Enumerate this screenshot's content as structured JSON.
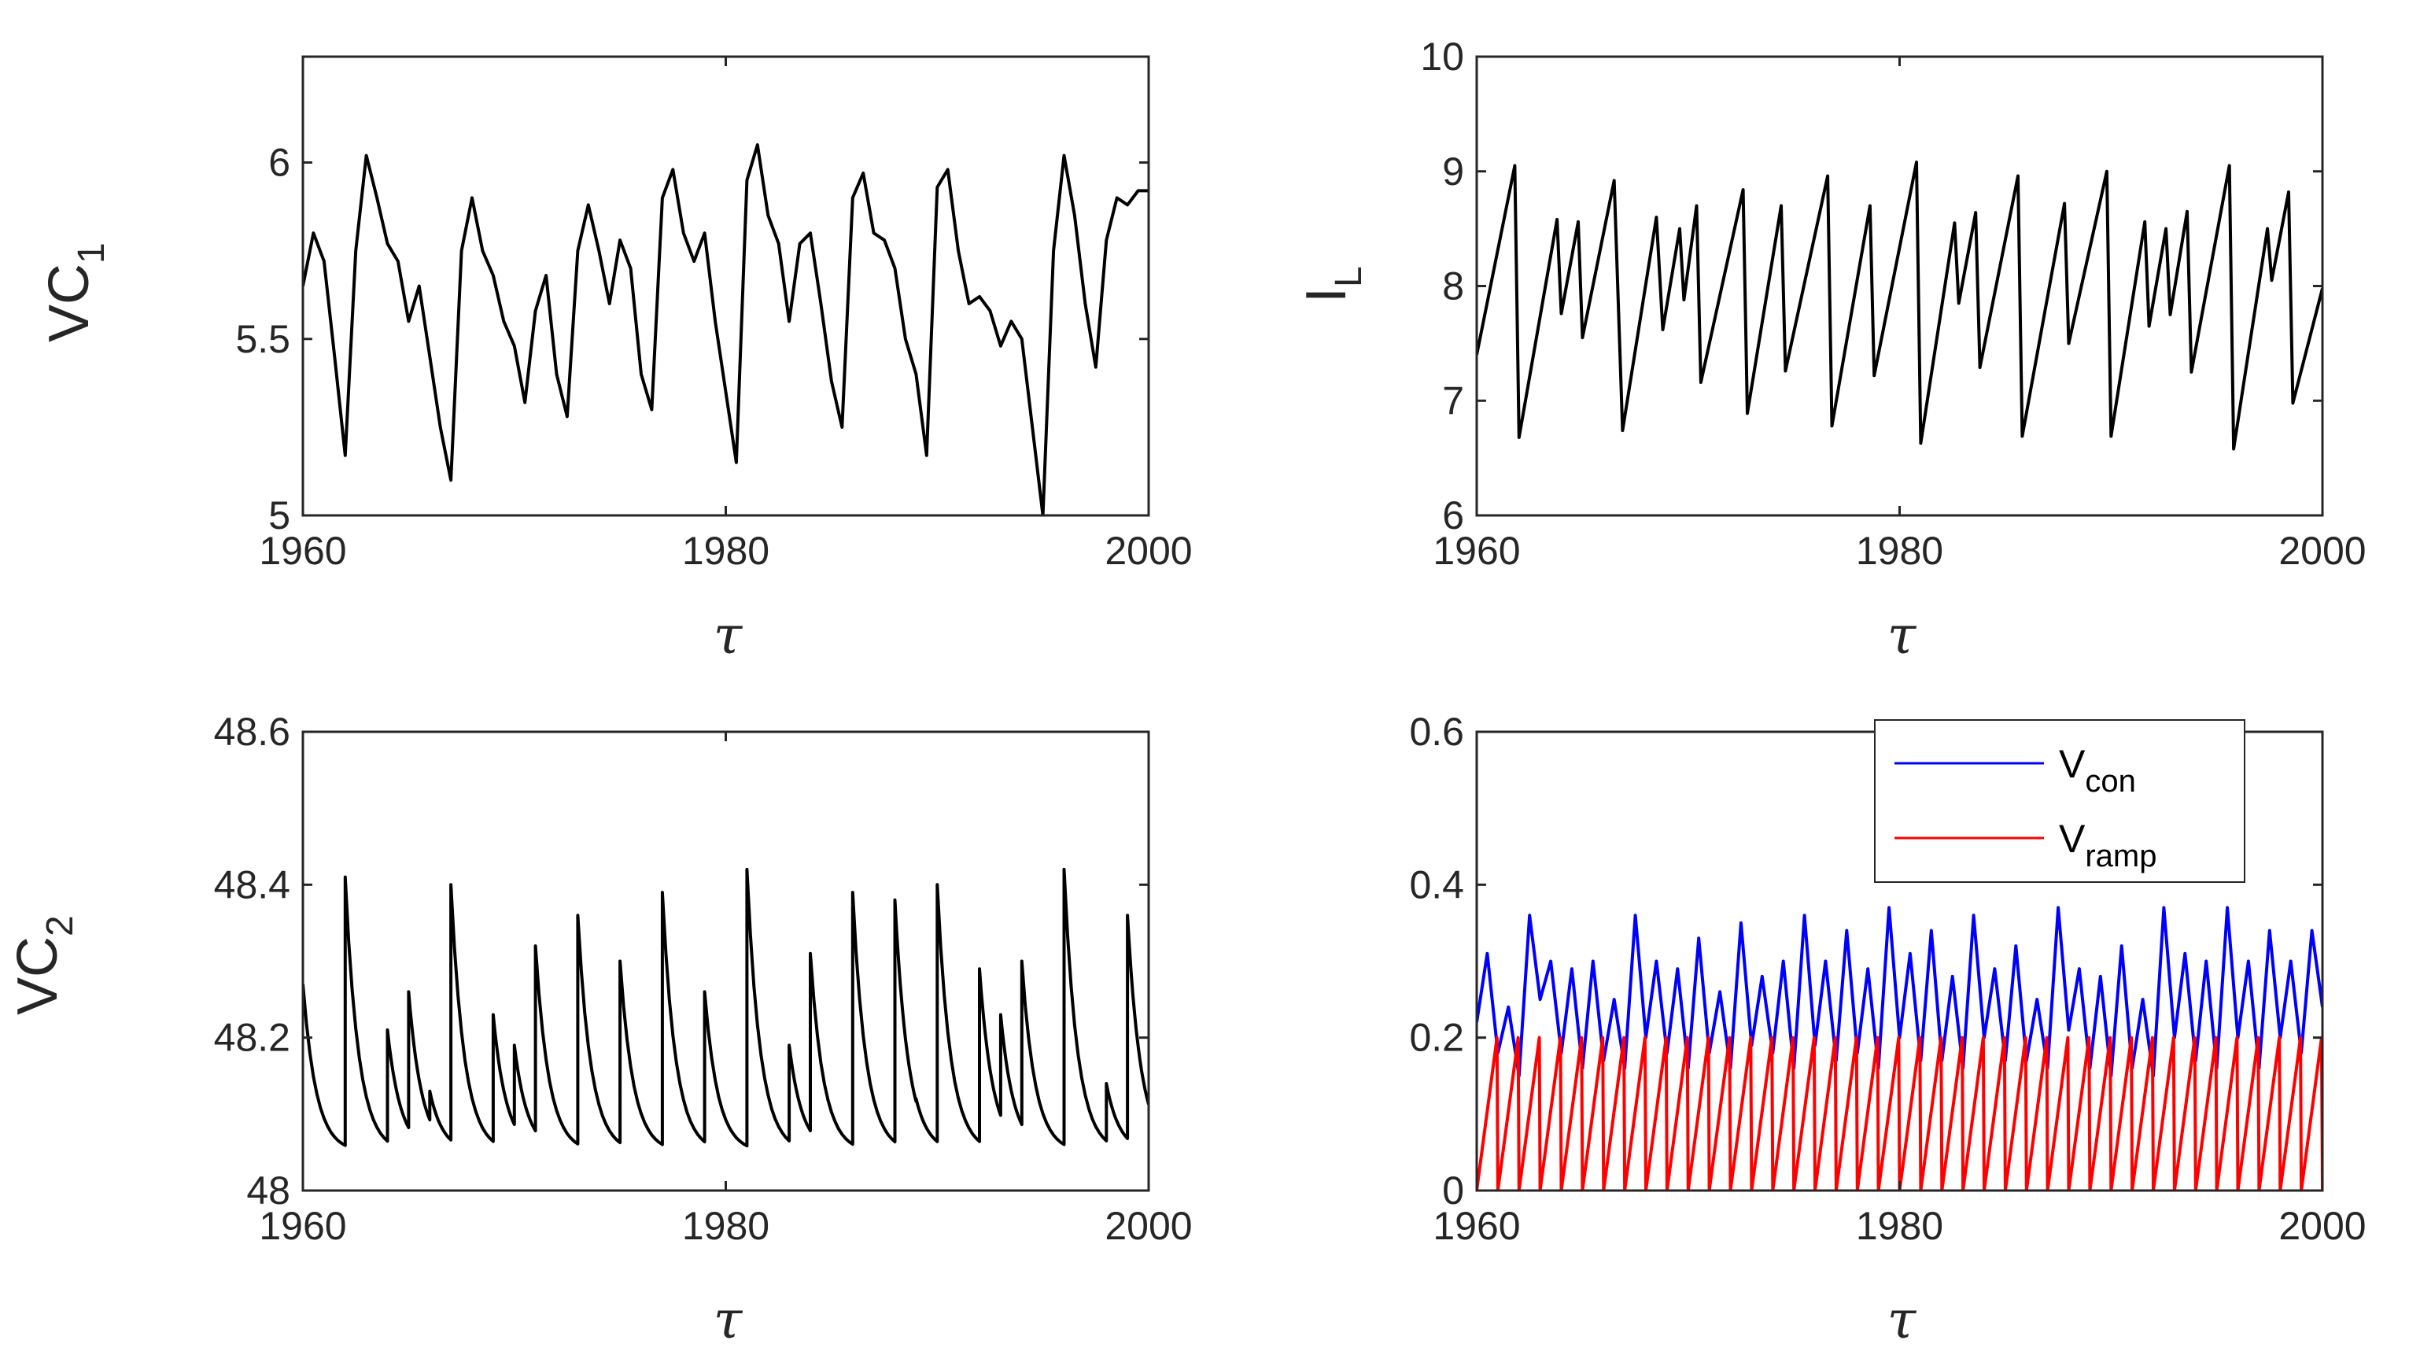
{
  "chart_data": [
    {
      "type": "line",
      "ylabel_main": "VC",
      "ylabel_sub": "1",
      "xlabel": "τ",
      "xlim": [
        1960,
        2000
      ],
      "ylim": [
        5,
        6.3
      ],
      "xticks": [
        1960,
        1980,
        2000
      ],
      "yticks": [
        5,
        5.5,
        6
      ],
      "ytick_labels": [
        "5",
        "5.5",
        "6"
      ],
      "xtick_labels": [
        "1960",
        "1980",
        "2000"
      ],
      "color": "#000000",
      "x": [
        1960,
        1960.5,
        1961,
        1961.5,
        1962,
        1962.5,
        1963,
        1963.5,
        1964,
        1964.5,
        1965,
        1965.5,
        1966,
        1966.5,
        1967,
        1967.5,
        1968,
        1968.5,
        1969,
        1969.5,
        1970,
        1970.5,
        1971,
        1971.5,
        1972,
        1972.5,
        1973,
        1973.5,
        1974,
        1974.5,
        1975,
        1975.5,
        1976,
        1976.5,
        1977,
        1977.5,
        1978,
        1978.5,
        1979,
        1979.5,
        1980,
        1980.5,
        1981,
        1981.5,
        1982,
        1982.5,
        1983,
        1983.5,
        1984,
        1984.5,
        1985,
        1985.5,
        1986,
        1986.5,
        1987,
        1987.5,
        1988,
        1988.5,
        1989,
        1989.5,
        1990,
        1990.5,
        1991,
        1991.5,
        1992,
        1992.5,
        1993,
        1993.5,
        1994,
        1994.5,
        1995,
        1995.5,
        1996,
        1996.5,
        1997,
        1997.5,
        1998,
        1998.5,
        1999,
        1999.5,
        2000
      ],
      "y": [
        5.65,
        5.8,
        5.72,
        5.45,
        5.17,
        5.75,
        6.02,
        5.9,
        5.77,
        5.72,
        5.55,
        5.65,
        5.45,
        5.25,
        5.1,
        5.75,
        5.9,
        5.75,
        5.68,
        5.55,
        5.48,
        5.32,
        5.58,
        5.68,
        5.4,
        5.28,
        5.75,
        5.88,
        5.75,
        5.6,
        5.78,
        5.7,
        5.4,
        5.3,
        5.9,
        5.98,
        5.8,
        5.72,
        5.8,
        5.55,
        5.35,
        5.15,
        5.95,
        6.05,
        5.85,
        5.77,
        5.55,
        5.77,
        5.8,
        5.6,
        5.38,
        5.25,
        5.9,
        5.97,
        5.8,
        5.78,
        5.7,
        5.5,
        5.4,
        5.17,
        5.93,
        5.98,
        5.75,
        5.6,
        5.62,
        5.58,
        5.48,
        5.55,
        5.5,
        5.25,
        5.0,
        5.75,
        6.02,
        5.85,
        5.6,
        5.42,
        5.78,
        5.9,
        5.88,
        5.92,
        5.92
      ]
    },
    {
      "type": "line",
      "ylabel_main": "I",
      "ylabel_sub": "L",
      "xlabel": "τ",
      "xlim": [
        1960,
        2000
      ],
      "ylim": [
        6,
        10
      ],
      "xticks": [
        1960,
        1980,
        2000
      ],
      "yticks": [
        6,
        7,
        8,
        9,
        10
      ],
      "ytick_labels": [
        "6",
        "7",
        "8",
        "9",
        "10"
      ],
      "xtick_labels": [
        "1960",
        "1980",
        "2000"
      ],
      "color": "#000000",
      "x": [
        1960,
        1961.8,
        1962,
        1963.8,
        1964,
        1964.8,
        1965,
        1966.5,
        1966.9,
        1968.5,
        1968.8,
        1969.6,
        1969.8,
        1970.4,
        1970.6,
        1972.6,
        1972.8,
        1974.4,
        1974.6,
        1976.6,
        1976.8,
        1978.6,
        1978.8,
        1980.8,
        1981,
        1982.6,
        1982.8,
        1983.6,
        1983.8,
        1985.6,
        1985.8,
        1987.8,
        1988,
        1989.8,
        1990,
        1991.6,
        1991.8,
        1992.6,
        1992.8,
        1993.6,
        1993.8,
        1995.6,
        1995.8,
        1997.4,
        1997.6,
        1998.4,
        1998.6,
        2000
      ],
      "y": [
        7.4,
        9.05,
        6.68,
        8.58,
        7.76,
        8.56,
        7.55,
        8.92,
        6.74,
        8.6,
        7.62,
        8.5,
        7.88,
        8.7,
        7.16,
        8.84,
        6.89,
        8.7,
        7.26,
        8.96,
        6.78,
        8.7,
        7.22,
        9.08,
        6.63,
        8.55,
        7.85,
        8.64,
        7.29,
        8.96,
        6.69,
        8.72,
        7.5,
        9.0,
        6.69,
        8.56,
        7.65,
        8.5,
        7.75,
        8.65,
        7.25,
        9.05,
        6.58,
        8.5,
        8.05,
        8.82,
        6.98,
        7.98
      ]
    },
    {
      "type": "line",
      "ylabel_main": "VC",
      "ylabel_sub": "2",
      "xlabel": "τ",
      "xlim": [
        1960,
        2000
      ],
      "ylim": [
        48,
        48.6
      ],
      "xticks": [
        1960,
        1980,
        2000
      ],
      "yticks": [
        48,
        48.2,
        48.4,
        48.6
      ],
      "ytick_labels": [
        "48",
        "48.2",
        "48.4",
        "48.6"
      ],
      "xtick_labels": [
        "1960",
        "1980",
        "2000"
      ],
      "color": "#000000",
      "events": [
        {
          "x": 1962,
          "y": 48.41
        },
        {
          "x": 1964,
          "y": 48.21
        },
        {
          "x": 1965,
          "y": 48.26
        },
        {
          "x": 1966,
          "y": 48.13
        },
        {
          "x": 1967,
          "y": 48.4
        },
        {
          "x": 1969,
          "y": 48.23
        },
        {
          "x": 1970,
          "y": 48.19
        },
        {
          "x": 1971,
          "y": 48.32
        },
        {
          "x": 1973,
          "y": 48.36
        },
        {
          "x": 1975,
          "y": 48.3
        },
        {
          "x": 1977,
          "y": 48.39
        },
        {
          "x": 1979,
          "y": 48.26
        },
        {
          "x": 1981,
          "y": 48.42
        },
        {
          "x": 1983,
          "y": 48.19
        },
        {
          "x": 1984,
          "y": 48.31
        },
        {
          "x": 1986,
          "y": 48.39
        },
        {
          "x": 1988,
          "y": 48.38
        },
        {
          "x": 1989,
          "y": 48.12
        },
        {
          "x": 1990,
          "y": 48.4
        },
        {
          "x": 1992,
          "y": 48.29
        },
        {
          "x": 1993,
          "y": 48.23
        },
        {
          "x": 1994,
          "y": 48.3
        },
        {
          "x": 1996,
          "y": 48.42
        },
        {
          "x": 1998,
          "y": 48.14
        },
        {
          "x": 1999,
          "y": 48.36
        }
      ],
      "y_start": 48.27,
      "y_floor": 48.05
    },
    {
      "type": "line",
      "xlabel": "τ",
      "xlim": [
        1960,
        2000
      ],
      "ylim": [
        0,
        0.6
      ],
      "xticks": [
        1960,
        1980,
        2000
      ],
      "yticks": [
        0,
        0.2,
        0.4,
        0.6
      ],
      "ytick_labels": [
        "0",
        "0.2",
        "0.4",
        "0.6"
      ],
      "xtick_labels": [
        "1960",
        "1980",
        "2000"
      ],
      "legend_position": "top-right",
      "series": [
        {
          "name_main": "V",
          "name_sub": "con",
          "color": "#0000ff",
          "x": [
            1960,
            1960.5,
            1961,
            1961.5,
            1962,
            1962.5,
            1963,
            1963.5,
            1964,
            1964.5,
            1965,
            1965.5,
            1966,
            1966.5,
            1967,
            1967.5,
            1968,
            1968.5,
            1969,
            1969.5,
            1970,
            1970.5,
            1971,
            1971.5,
            1972,
            1972.5,
            1973,
            1973.5,
            1974,
            1974.5,
            1975,
            1975.5,
            1976,
            1976.5,
            1977,
            1977.5,
            1978,
            1978.5,
            1979,
            1979.5,
            1980,
            1980.5,
            1981,
            1981.5,
            1982,
            1982.5,
            1983,
            1983.5,
            1984,
            1984.5,
            1985,
            1985.5,
            1986,
            1986.5,
            1987,
            1987.5,
            1988,
            1988.5,
            1989,
            1989.5,
            1990,
            1990.5,
            1991,
            1991.5,
            1992,
            1992.5,
            1993,
            1993.5,
            1994,
            1994.5,
            1995,
            1995.5,
            1996,
            1996.5,
            1997,
            1997.5,
            1998,
            1998.5,
            1999,
            1999.5,
            2000
          ],
          "y": [
            0.22,
            0.31,
            0.18,
            0.24,
            0.15,
            0.36,
            0.25,
            0.3,
            0.18,
            0.29,
            0.16,
            0.3,
            0.17,
            0.25,
            0.16,
            0.36,
            0.2,
            0.3,
            0.18,
            0.29,
            0.16,
            0.33,
            0.18,
            0.26,
            0.16,
            0.35,
            0.19,
            0.28,
            0.18,
            0.3,
            0.16,
            0.36,
            0.19,
            0.3,
            0.17,
            0.34,
            0.18,
            0.29,
            0.16,
            0.37,
            0.2,
            0.31,
            0.17,
            0.34,
            0.17,
            0.28,
            0.16,
            0.36,
            0.2,
            0.29,
            0.17,
            0.32,
            0.17,
            0.25,
            0.16,
            0.37,
            0.21,
            0.29,
            0.16,
            0.28,
            0.15,
            0.32,
            0.16,
            0.25,
            0.15,
            0.37,
            0.2,
            0.31,
            0.17,
            0.3,
            0.16,
            0.37,
            0.2,
            0.3,
            0.16,
            0.34,
            0.2,
            0.3,
            0.18,
            0.34,
            0.24
          ]
        },
        {
          "name_main": "V",
          "name_sub": "ramp",
          "color": "#ff0000",
          "period": 1.0,
          "min": 0,
          "max": 0.2
        }
      ]
    }
  ]
}
